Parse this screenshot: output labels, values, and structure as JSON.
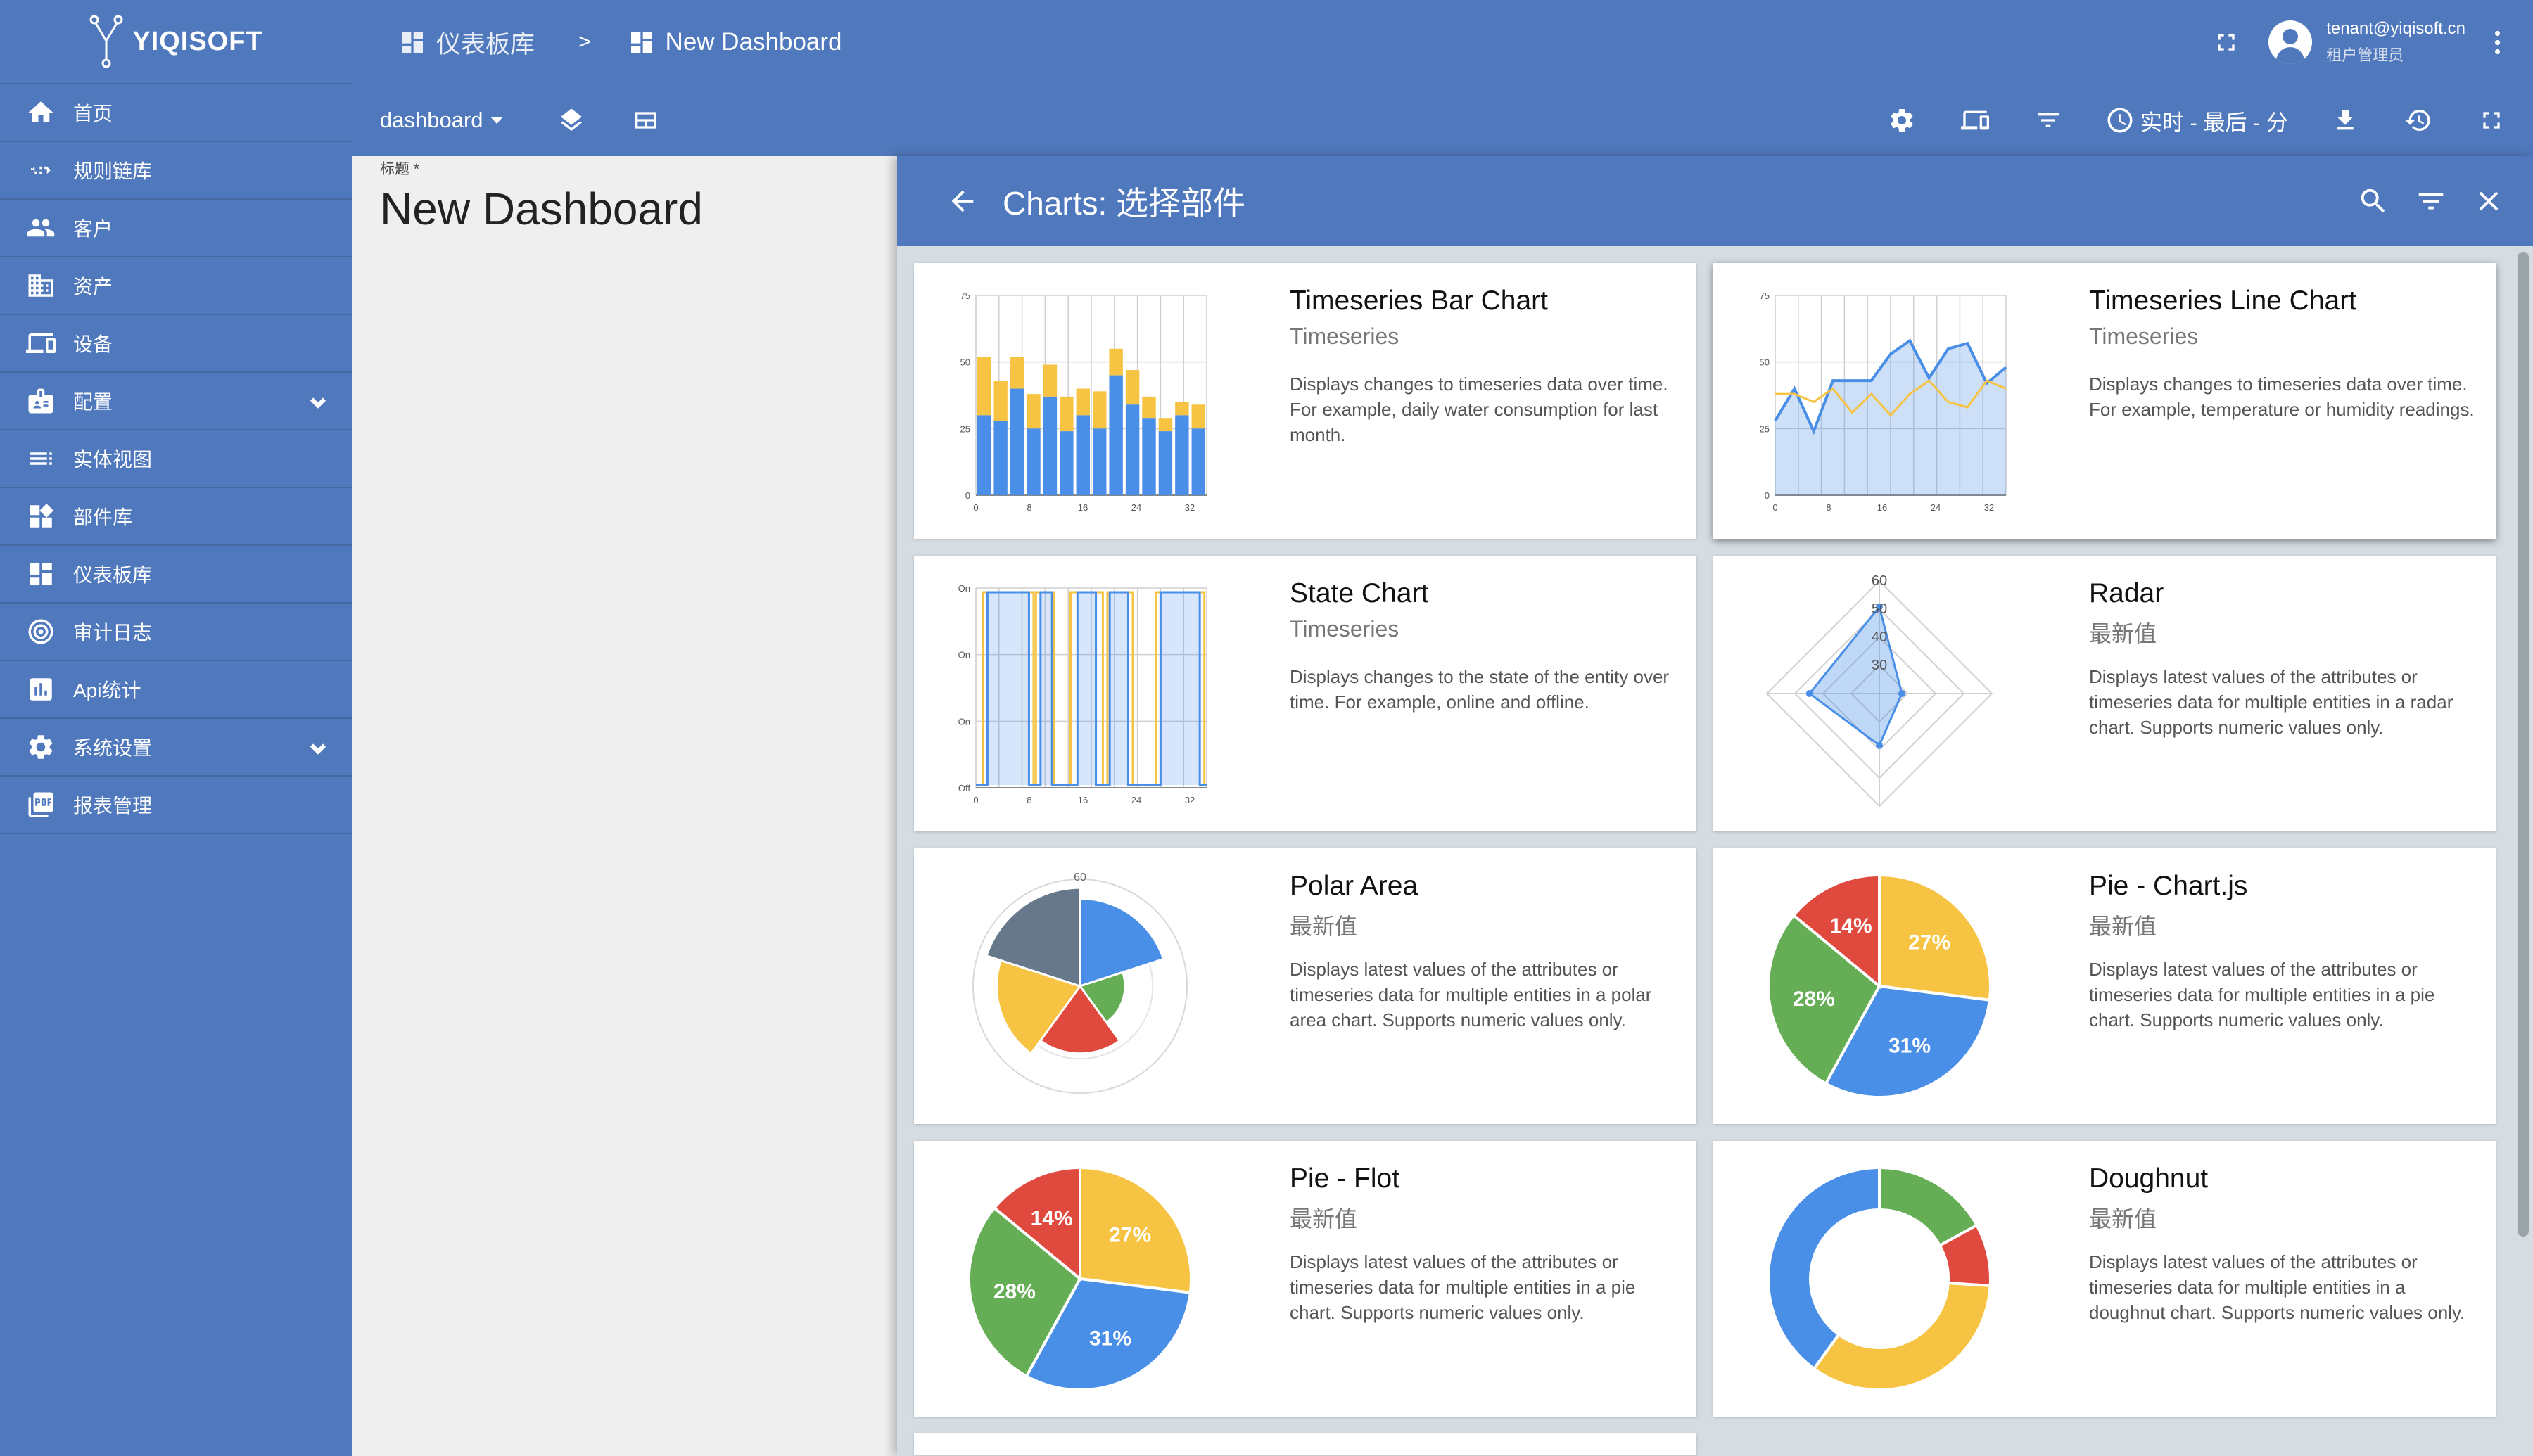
{
  "brand": {
    "name": "YIQISOFT"
  },
  "sidebar": {
    "items": [
      {
        "label": "首页",
        "icon": "home-icon"
      },
      {
        "label": "规则链库",
        "icon": "code-icon"
      },
      {
        "label": "客户",
        "icon": "people-icon"
      },
      {
        "label": "资产",
        "icon": "building-icon"
      },
      {
        "label": "设备",
        "icon": "devices-icon"
      },
      {
        "label": "配置",
        "icon": "profile-icon",
        "expandable": true
      },
      {
        "label": "实体视图",
        "icon": "view-icon"
      },
      {
        "label": "部件库",
        "icon": "widgets-icon"
      },
      {
        "label": "仪表板库",
        "icon": "dashboard-icon"
      },
      {
        "label": "审计日志",
        "icon": "audit-icon"
      },
      {
        "label": "Api统计",
        "icon": "chart-icon"
      },
      {
        "label": "系统设置",
        "icon": "gear-icon",
        "expandable": true
      },
      {
        "label": "报表管理",
        "icon": "pdf-icon"
      }
    ]
  },
  "header": {
    "breadcrumb": [
      {
        "label": "仪表板库",
        "icon": "dashboard-icon"
      },
      {
        "label": "New Dashboard",
        "icon": "dashboard-icon"
      }
    ],
    "separator": ">",
    "user": {
      "email": "tenant@yiqisoft.cn",
      "role": "租户管理员"
    }
  },
  "toolbar": {
    "datasource": "dashboard",
    "timewindow": "实时 - 最后 - 分"
  },
  "canvas": {
    "title_label": "标题 *",
    "dashboard_title": "New Dashboard"
  },
  "panel": {
    "title": "Charts: 选择部件",
    "cards": [
      {
        "title": "Timeseries Bar Chart",
        "subtitle": "Timeseries",
        "description": "Displays changes to timeseries data over time. For example, daily water consumption for last month.",
        "thumb": "bar",
        "selected": false
      },
      {
        "title": "Timeseries Line Chart",
        "subtitle": "Timeseries",
        "description": "Displays changes to timeseries data over time. For example, temperature or humidity readings.",
        "thumb": "line",
        "selected": true
      },
      {
        "title": "State Chart",
        "subtitle": "Timeseries",
        "description": "Displays changes to the state of the entity over time. For example, online and offline.",
        "thumb": "state",
        "selected": false
      },
      {
        "title": "Radar",
        "subtitle": "最新值",
        "description": "Displays latest values of the attributes or timeseries data for multiple entities in a radar chart. Supports numeric values only.",
        "thumb": "radar",
        "selected": false
      },
      {
        "title": "Polar Area",
        "subtitle": "最新值",
        "description": "Displays latest values of the attributes or timeseries data for multiple entities in a polar area chart. Supports numeric values only.",
        "thumb": "polar",
        "selected": false
      },
      {
        "title": "Pie - Chart.js",
        "subtitle": "最新值",
        "description": "Displays latest values of the attributes or timeseries data for multiple entities in a pie chart. Supports numeric values only.",
        "thumb": "pie",
        "selected": false
      },
      {
        "title": "Pie - Flot",
        "subtitle": "最新值",
        "description": "Displays latest values of the attributes or timeseries data for multiple entities in a pie chart. Supports numeric values only.",
        "thumb": "pie",
        "selected": false
      },
      {
        "title": "Doughnut",
        "subtitle": "最新值",
        "description": "Displays latest values of the attributes or timeseries data for multiple entities in a doughnut chart. Supports numeric values only.",
        "thumb": "doughnut",
        "selected": false
      }
    ],
    "thumb_text": {
      "ts_x_ticks": [
        "0",
        "8",
        "16",
        "24",
        "32"
      ],
      "ts_y_ticks": [
        "75",
        "50",
        "25",
        "0"
      ],
      "state_y_ticks": [
        "On",
        "On",
        "On",
        "Off"
      ],
      "radar_ticks": [
        "60",
        "50",
        "40",
        "30"
      ],
      "polar_tick": "60",
      "pie_labels": [
        "14%",
        "27%",
        "28%",
        "31%"
      ]
    }
  },
  "colors": {
    "primary": "#5078bc",
    "blue": "#4a8fe7",
    "yellow": "#f6c342",
    "green": "#65ae56",
    "red": "#e0493e",
    "slate": "#66788a"
  }
}
